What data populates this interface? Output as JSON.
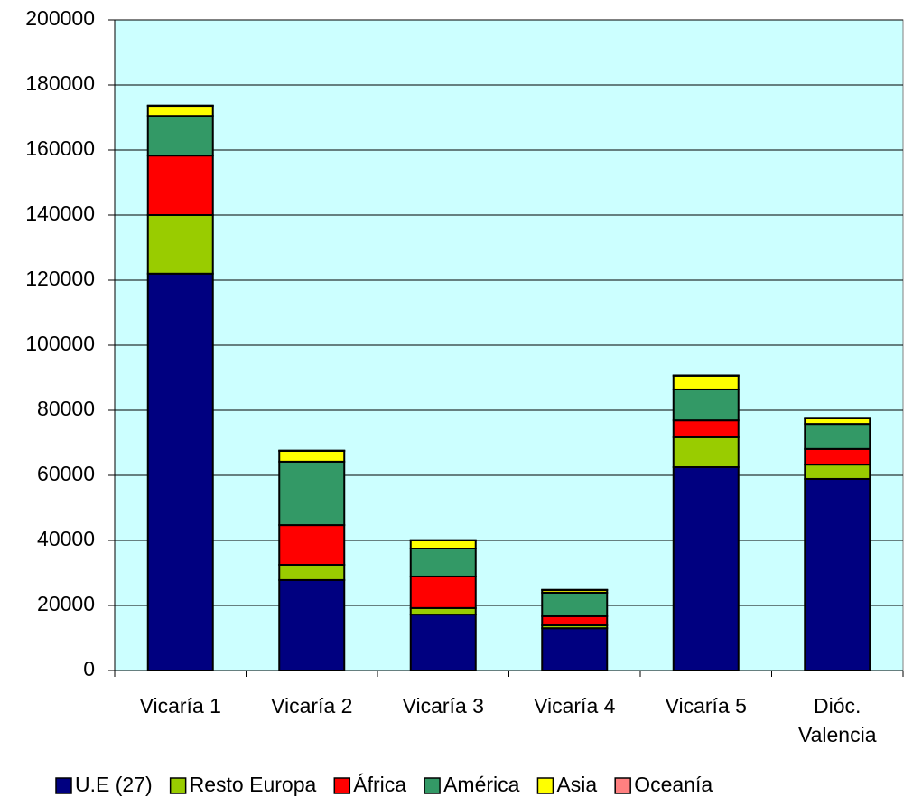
{
  "chart_data": {
    "type": "stacked_bar",
    "categories": [
      "Vicaría 1",
      "Vicaría 2",
      "Vicaría 3",
      "Vicaría 4",
      "Vicaría 5",
      "Dióc. Valencia"
    ],
    "series": [
      {
        "name": "U.E (27)",
        "color": "#000080",
        "values": [
          122000,
          27800,
          17200,
          13000,
          62500,
          58900
        ]
      },
      {
        "name": "Resto Europa",
        "color": "#99cc00",
        "values": [
          18000,
          4700,
          2000,
          900,
          9200,
          4400
        ]
      },
      {
        "name": "África",
        "color": "#ff0000",
        "values": [
          18300,
          12200,
          9700,
          2800,
          5200,
          4800
        ]
      },
      {
        "name": "América",
        "color": "#339966",
        "values": [
          12200,
          19500,
          8600,
          7200,
          9500,
          7700
        ]
      },
      {
        "name": "Asia",
        "color": "#ffff00",
        "values": [
          3100,
          3300,
          2500,
          800,
          4200,
          1700
        ]
      },
      {
        "name": "Oceanía",
        "color": "#ff8080",
        "values": [
          100,
          100,
          100,
          100,
          100,
          200
        ]
      }
    ],
    "ylim": [
      0,
      200000
    ],
    "yticks": [
      0,
      20000,
      40000,
      60000,
      80000,
      100000,
      120000,
      140000,
      160000,
      180000,
      200000
    ],
    "grid": true,
    "plot_background": "#ccffff",
    "legend": "bottom"
  }
}
